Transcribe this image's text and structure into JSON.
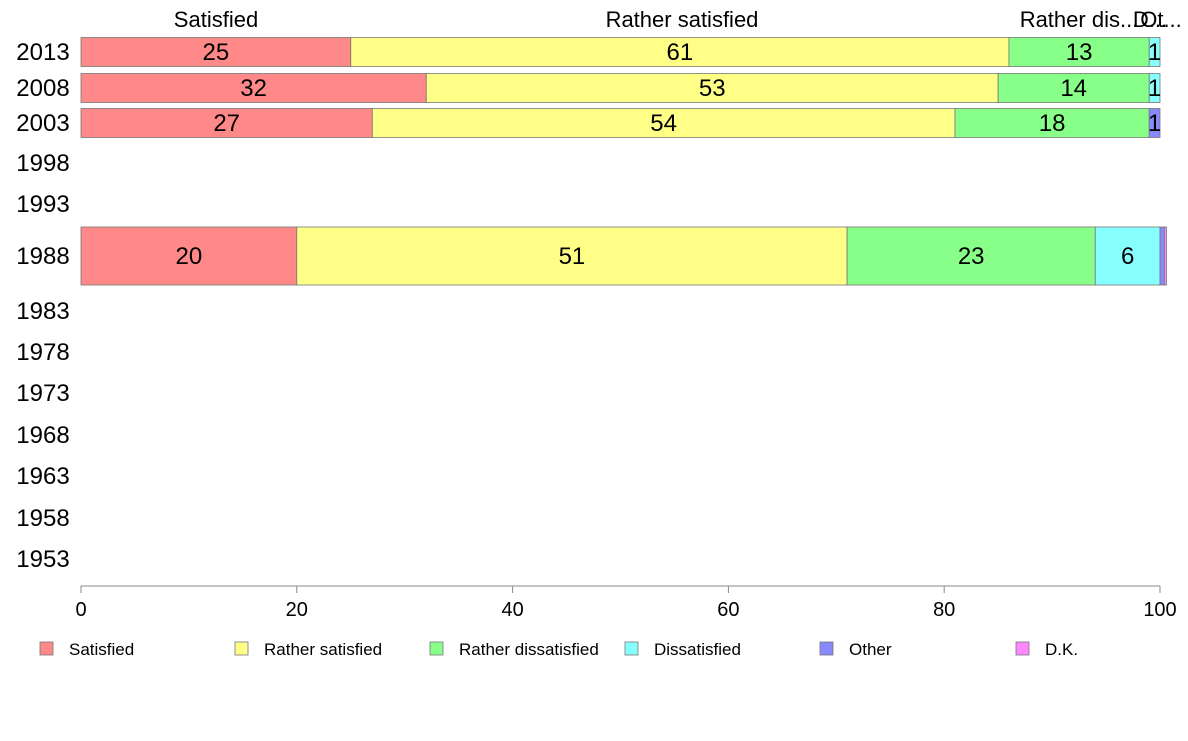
{
  "chart_data": {
    "type": "bar",
    "orientation": "horizontal",
    "stacked": true,
    "categories": [
      "2013",
      "2008",
      "2003",
      "1998",
      "1993",
      "1988",
      "1983",
      "1978",
      "1973",
      "1968",
      "1963",
      "1958",
      "1953"
    ],
    "series": [
      {
        "name": "Satisfied",
        "color": "#ff8888",
        "values": [
          25,
          32,
          27,
          null,
          null,
          20,
          null,
          null,
          null,
          null,
          null,
          null,
          null
        ]
      },
      {
        "name": "Rather satisfied",
        "color": "#ffff88",
        "values": [
          61,
          53,
          54,
          null,
          null,
          51,
          null,
          null,
          null,
          null,
          null,
          null,
          null
        ]
      },
      {
        "name": "Rather dissatisfied",
        "color": "#88ff88",
        "values": [
          13,
          14,
          18,
          null,
          null,
          23,
          null,
          null,
          null,
          null,
          null,
          null,
          null
        ]
      },
      {
        "name": "Dissatisfied",
        "color": "#88ffff",
        "values": [
          1,
          1,
          0,
          null,
          null,
          6,
          null,
          null,
          null,
          null,
          null,
          null,
          null
        ]
      },
      {
        "name": "Other",
        "color": "#8888ff",
        "values": [
          0,
          0,
          1,
          null,
          null,
          0.4,
          null,
          null,
          null,
          null,
          null,
          null,
          null
        ]
      },
      {
        "name": "D.K.",
        "color": "#ff88ff",
        "values": [
          0,
          0,
          0,
          null,
          null,
          0.2,
          null,
          null,
          null,
          null,
          null,
          null,
          null
        ]
      }
    ],
    "segment_labels": {
      "2013": [
        "25",
        "61",
        "13",
        "1",
        "",
        ""
      ],
      "2008": [
        "32",
        "53",
        "14",
        "1",
        "",
        ""
      ],
      "2003": [
        "27",
        "54",
        "18",
        "",
        "1",
        ""
      ],
      "1988": [
        "20",
        "51",
        "23",
        "6",
        "",
        ""
      ]
    },
    "top_labels": [
      "Satisfied",
      "Rather satisfied",
      "Rather dis...",
      "D...",
      "Ot..."
    ],
    "xlim": [
      0,
      100
    ],
    "xticks": [
      0,
      20,
      40,
      60,
      80,
      100
    ],
    "xlabel": "",
    "ylabel": "",
    "grid": false,
    "legend_position": "bottom"
  }
}
